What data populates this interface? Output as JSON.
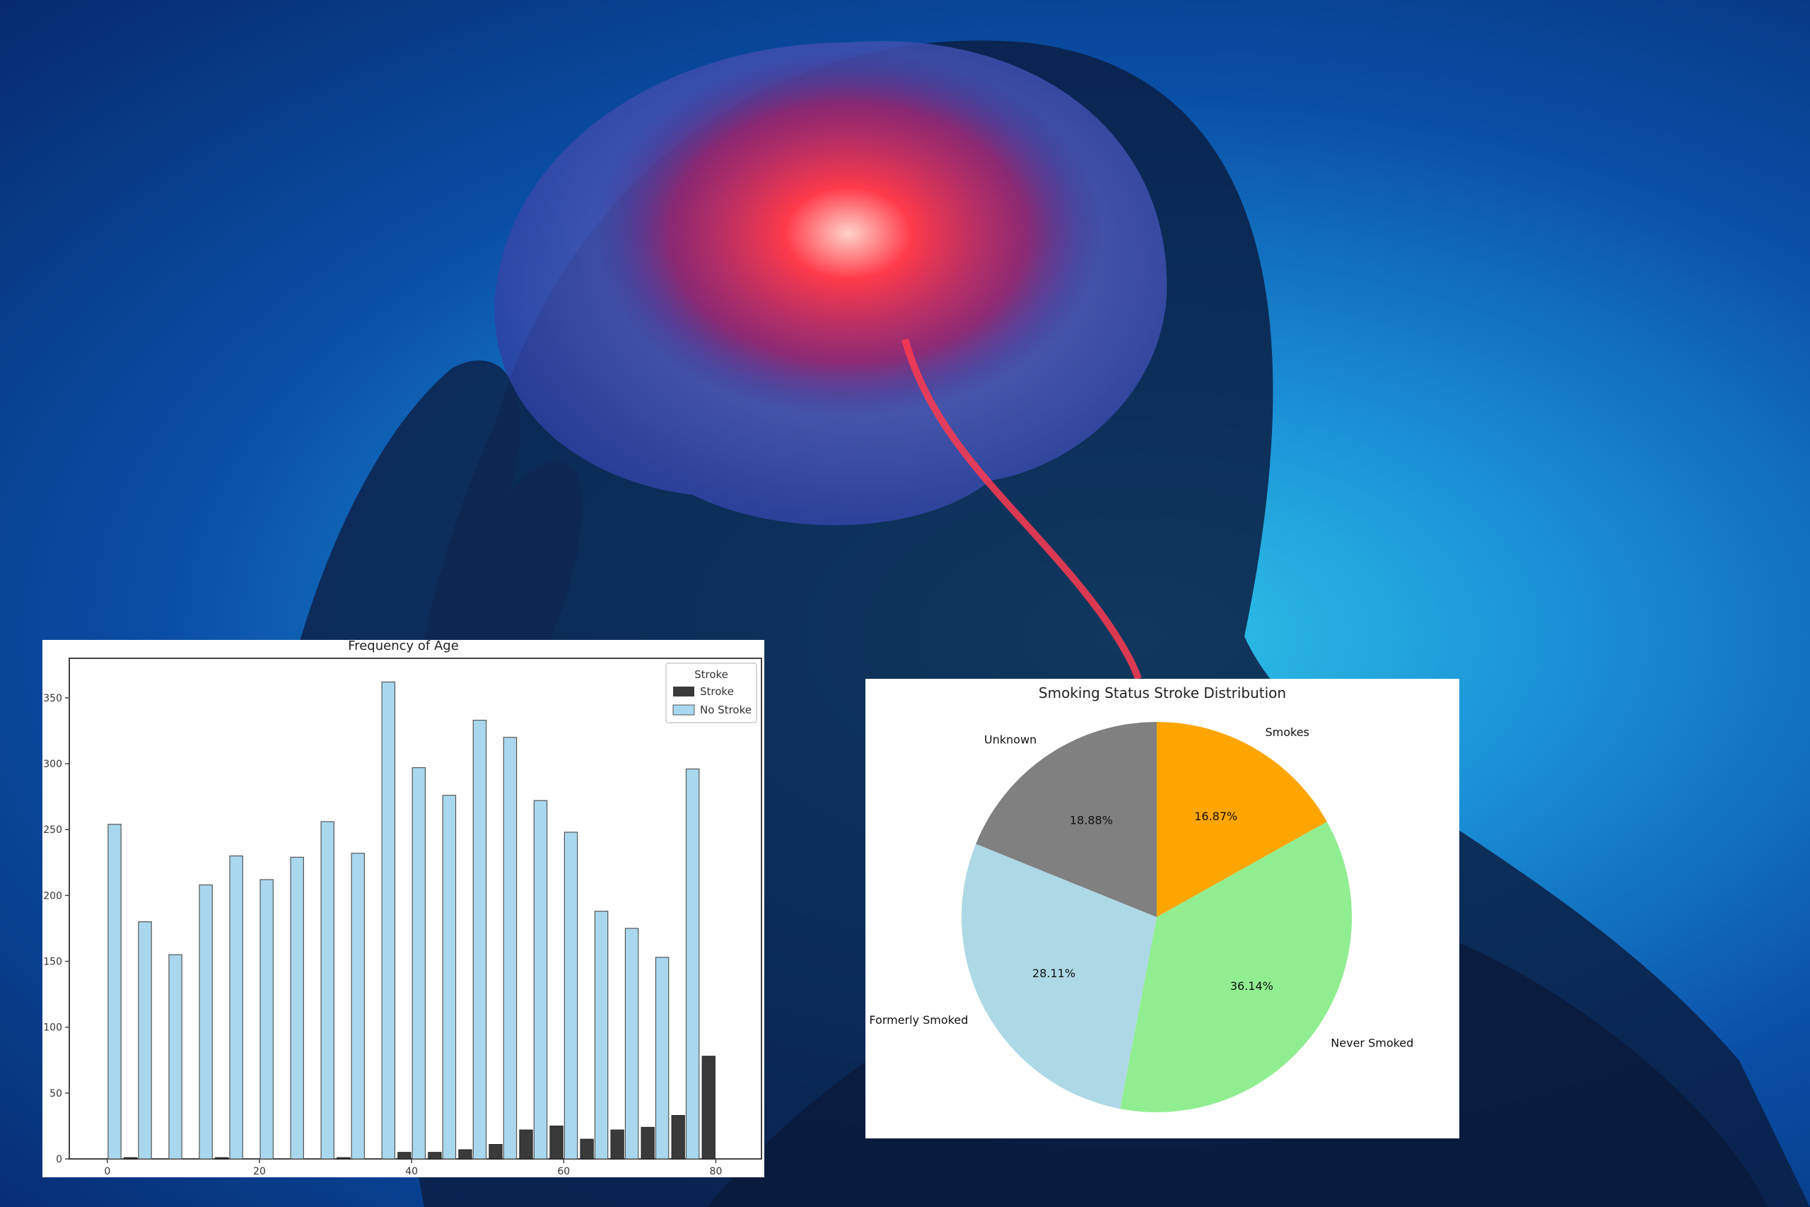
{
  "colors": {
    "stroke": "#3a3a3a",
    "no_stroke": "#a9d8ee",
    "smokes": "#ffa500",
    "never_smoked": "#90ee90",
    "formerly_smoked": "#add8e6",
    "unknown": "#808080"
  },
  "chart_data": [
    {
      "type": "bar",
      "title": "Frequency of Age",
      "xlabel": "",
      "ylabel": "",
      "xlim": [
        -5,
        86
      ],
      "ylim": [
        0,
        380
      ],
      "x_ticks": [
        0,
        20,
        40,
        60,
        80
      ],
      "y_ticks": [
        0,
        50,
        100,
        150,
        200,
        250,
        300,
        350
      ],
      "grid": false,
      "legend": {
        "title": "Stroke",
        "position": "top-right"
      },
      "x": [
        2,
        6,
        10,
        14,
        18,
        22,
        26,
        30,
        34,
        38,
        42,
        46,
        50,
        54,
        58,
        62,
        66,
        70,
        74,
        78
      ],
      "series": [
        {
          "name": "Stroke",
          "values": [
            1,
            0,
            0,
            1,
            0,
            0,
            0,
            1,
            0,
            5,
            5,
            7,
            11,
            22,
            25,
            15,
            22,
            24,
            33,
            78
          ]
        },
        {
          "name": "No Stroke",
          "values": [
            254,
            180,
            155,
            208,
            230,
            212,
            229,
            256,
            232,
            362,
            297,
            276,
            333,
            320,
            272,
            248,
            188,
            175,
            153,
            296
          ]
        }
      ]
    },
    {
      "type": "pie",
      "title": "Smoking Status Stroke Distribution",
      "start": "top, clockwise",
      "slices": [
        {
          "label": "Smokes",
          "value": 16.87,
          "pct_label": "16.87%"
        },
        {
          "label": "Never Smoked",
          "value": 36.14,
          "pct_label": "36.14%"
        },
        {
          "label": "Formerly Smoked",
          "value": 28.11,
          "pct_label": "28.11%"
        },
        {
          "label": "Unknown",
          "value": 18.88,
          "pct_label": "18.88%"
        }
      ]
    }
  ]
}
